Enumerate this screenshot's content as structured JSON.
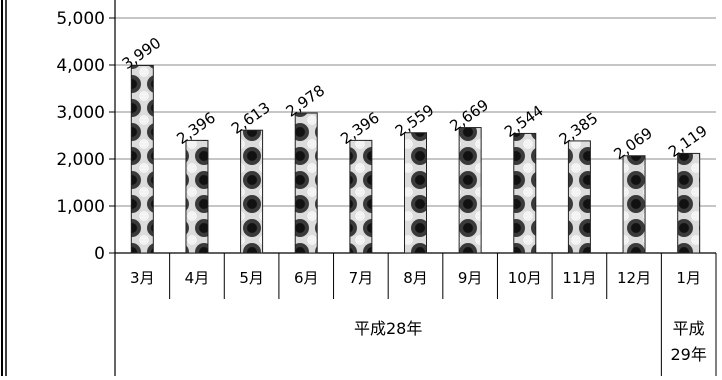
{
  "chart_data": {
    "type": "bar",
    "categories": [
      "3月",
      "4月",
      "5月",
      "6月",
      "7月",
      "8月",
      "9月",
      "10月",
      "11月",
      "12月",
      "1月"
    ],
    "values": [
      3990,
      2396,
      2613,
      2978,
      2396,
      2559,
      2669,
      2544,
      2385,
      2069,
      2119
    ],
    "value_labels": [
      "3,990",
      "2,396",
      "2,613",
      "2,978",
      "2,396",
      "2,559",
      "2,669",
      "2,544",
      "2,385",
      "2,069",
      "2,119"
    ],
    "groups": [
      {
        "label": "平成28年",
        "span": 10
      },
      {
        "label_lines": [
          "平成",
          "29年"
        ],
        "span": 1
      }
    ],
    "ylim": [
      0,
      5000
    ],
    "yticks": [
      "0",
      "1,000",
      "2,000",
      "3,000",
      "4,000",
      "5,000"
    ],
    "ytick_values": [
      0,
      1000,
      2000,
      3000,
      4000,
      5000
    ],
    "grid": true,
    "legend": "none",
    "title": "",
    "xlabel": "",
    "ylabel": "",
    "colors": {
      "bar_light": "#d9d9d9",
      "bar_dark": "#222222",
      "grid": "#8c8c8c",
      "axis": "#000000"
    }
  }
}
